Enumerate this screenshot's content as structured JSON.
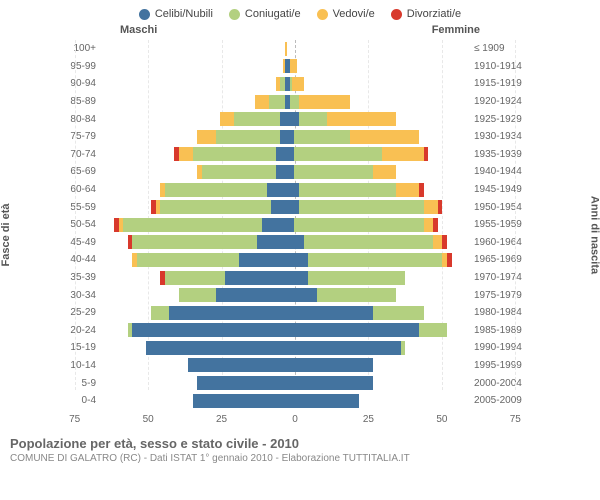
{
  "chart": {
    "type": "population-pyramid-stacked",
    "legend": [
      {
        "label": "Celibi/Nubili",
        "color": "#43739f"
      },
      {
        "label": "Coniugati/e",
        "color": "#b3d080"
      },
      {
        "label": "Vedovi/e",
        "color": "#f9c053"
      },
      {
        "label": "Divorziati/e",
        "color": "#d8392c"
      }
    ],
    "header_male": "Maschi",
    "header_female": "Femmine",
    "y_left_label": "Fasce di età",
    "y_right_label": "Anni di nascita",
    "xmax": 80,
    "xticks": [
      0,
      25,
      50,
      75
    ],
    "rows": [
      {
        "age": "100+",
        "birth": "≤ 1909",
        "m": {
          "c": 0,
          "co": 0,
          "v": 0,
          "d": 0
        },
        "f": {
          "c": 0,
          "co": 0,
          "v": 1,
          "d": 0
        }
      },
      {
        "age": "95-99",
        "birth": "1910-1914",
        "m": {
          "c": 0,
          "co": 0,
          "v": 1,
          "d": 0
        },
        "f": {
          "c": 2,
          "co": 0,
          "v": 3,
          "d": 0
        }
      },
      {
        "age": "90-94",
        "birth": "1915-1919",
        "m": {
          "c": 0,
          "co": 2,
          "v": 2,
          "d": 0
        },
        "f": {
          "c": 2,
          "co": 1,
          "v": 5,
          "d": 0
        }
      },
      {
        "age": "85-89",
        "birth": "1920-1924",
        "m": {
          "c": 0,
          "co": 7,
          "v": 6,
          "d": 0
        },
        "f": {
          "c": 2,
          "co": 4,
          "v": 22,
          "d": 0
        }
      },
      {
        "age": "80-84",
        "birth": "1925-1929",
        "m": {
          "c": 2,
          "co": 20,
          "v": 6,
          "d": 0
        },
        "f": {
          "c": 6,
          "co": 12,
          "v": 30,
          "d": 0
        }
      },
      {
        "age": "75-79",
        "birth": "1930-1934",
        "m": {
          "c": 2,
          "co": 28,
          "v": 8,
          "d": 0
        },
        "f": {
          "c": 4,
          "co": 24,
          "v": 30,
          "d": 0
        }
      },
      {
        "age": "70-74",
        "birth": "1935-1939",
        "m": {
          "c": 4,
          "co": 36,
          "v": 6,
          "d": 2
        },
        "f": {
          "c": 4,
          "co": 38,
          "v": 18,
          "d": 2
        }
      },
      {
        "age": "65-69",
        "birth": "1940-1944",
        "m": {
          "c": 4,
          "co": 32,
          "v": 2,
          "d": 0
        },
        "f": {
          "c": 4,
          "co": 34,
          "v": 10,
          "d": 0
        }
      },
      {
        "age": "60-64",
        "birth": "1945-1949",
        "m": {
          "c": 8,
          "co": 44,
          "v": 2,
          "d": 0
        },
        "f": {
          "c": 6,
          "co": 42,
          "v": 10,
          "d": 2
        }
      },
      {
        "age": "55-59",
        "birth": "1950-1954",
        "m": {
          "c": 6,
          "co": 48,
          "v": 2,
          "d": 2
        },
        "f": {
          "c": 6,
          "co": 54,
          "v": 6,
          "d": 2
        }
      },
      {
        "age": "50-54",
        "birth": "1955-1959",
        "m": {
          "c": 10,
          "co": 60,
          "v": 2,
          "d": 2
        },
        "f": {
          "c": 4,
          "co": 56,
          "v": 4,
          "d": 2
        }
      },
      {
        "age": "45-49",
        "birth": "1960-1964",
        "m": {
          "c": 12,
          "co": 54,
          "v": 0,
          "d": 2
        },
        "f": {
          "c": 8,
          "co": 56,
          "v": 4,
          "d": 2
        }
      },
      {
        "age": "40-44",
        "birth": "1965-1969",
        "m": {
          "c": 20,
          "co": 44,
          "v": 2,
          "d": 0
        },
        "f": {
          "c": 10,
          "co": 58,
          "v": 2,
          "d": 2
        }
      },
      {
        "age": "35-39",
        "birth": "1970-1974",
        "m": {
          "c": 26,
          "co": 26,
          "v": 0,
          "d": 2
        },
        "f": {
          "c": 10,
          "co": 42,
          "v": 0,
          "d": 0
        }
      },
      {
        "age": "30-34",
        "birth": "1975-1979",
        "m": {
          "c": 30,
          "co": 16,
          "v": 0,
          "d": 0
        },
        "f": {
          "c": 14,
          "co": 34,
          "v": 0,
          "d": 0
        }
      },
      {
        "age": "25-29",
        "birth": "1980-1984",
        "m": {
          "c": 50,
          "co": 8,
          "v": 0,
          "d": 0
        },
        "f": {
          "c": 38,
          "co": 22,
          "v": 0,
          "d": 0
        }
      },
      {
        "age": "20-24",
        "birth": "1985-1989",
        "m": {
          "c": 66,
          "co": 2,
          "v": 0,
          "d": 0
        },
        "f": {
          "c": 58,
          "co": 12,
          "v": 0,
          "d": 0
        }
      },
      {
        "age": "15-19",
        "birth": "1990-1994",
        "m": {
          "c": 60,
          "co": 0,
          "v": 0,
          "d": 0
        },
        "f": {
          "c": 50,
          "co": 2,
          "v": 0,
          "d": 0
        }
      },
      {
        "age": "10-14",
        "birth": "1995-1999",
        "m": {
          "c": 42,
          "co": 0,
          "v": 0,
          "d": 0
        },
        "f": {
          "c": 38,
          "co": 0,
          "v": 0,
          "d": 0
        }
      },
      {
        "age": "5-9",
        "birth": "2000-2004",
        "m": {
          "c": 38,
          "co": 0,
          "v": 0,
          "d": 0
        },
        "f": {
          "c": 38,
          "co": 0,
          "v": 0,
          "d": 0
        }
      },
      {
        "age": "0-4",
        "birth": "2005-2009",
        "m": {
          "c": 40,
          "co": 0,
          "v": 0,
          "d": 0
        },
        "f": {
          "c": 32,
          "co": 0,
          "v": 0,
          "d": 0
        }
      }
    ],
    "colors": {
      "c": "#43739f",
      "co": "#b3d080",
      "v": "#f9c053",
      "d": "#d8392c"
    },
    "grid_color": "#e8e8e8",
    "center_line_color": "#bbbbbb",
    "background": "#ffffff",
    "title": "Popolazione per età, sesso e stato civile - 2010",
    "subtitle": "COMUNE DI GALATRO (RC) - Dati ISTAT 1° gennaio 2010 - Elaborazione TUTTITALIA.IT"
  }
}
